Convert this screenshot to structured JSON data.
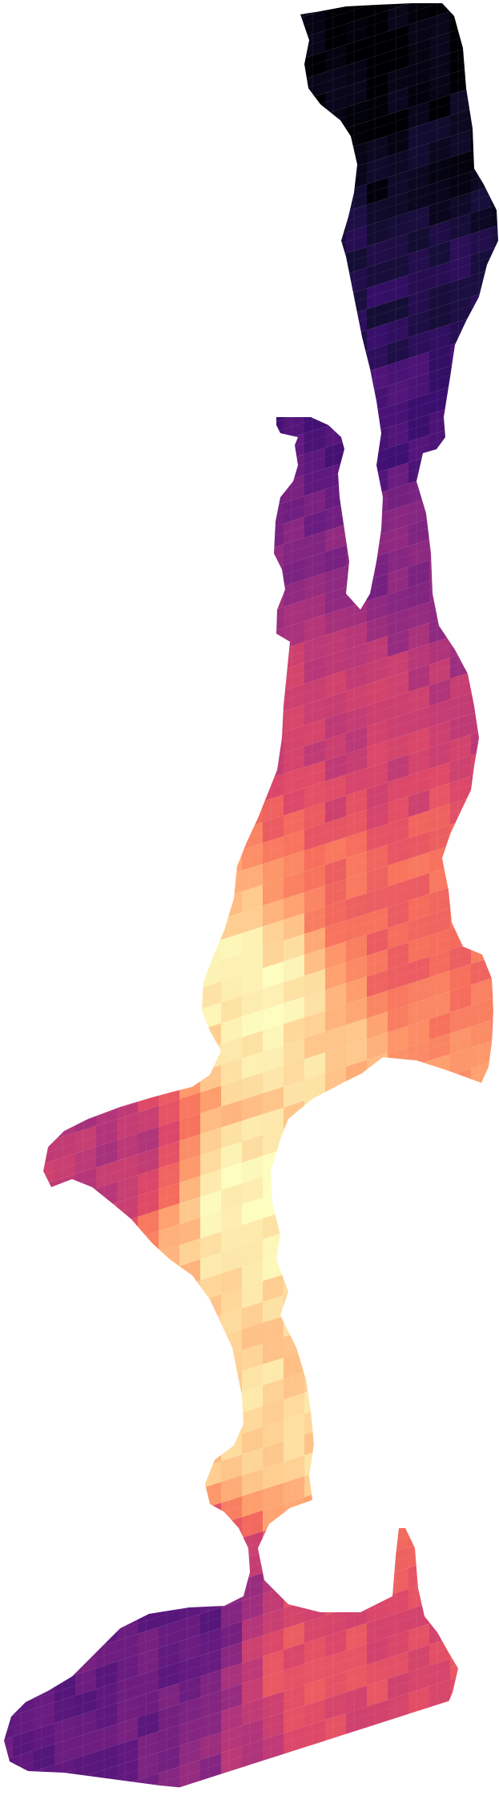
{
  "map": {
    "type": "raster-heatmap",
    "colormap": "magma",
    "colors": {
      "background": "#ffffff",
      "ramp": [
        "#000004",
        "#140e36",
        "#3b0f70",
        "#641a80",
        "#8c2981",
        "#b73779",
        "#de4968",
        "#f7705c",
        "#fe9f6d",
        "#fecf92",
        "#fcfdbf"
      ]
    },
    "region_values": [
      {
        "name": "north-tip",
        "value": 0.0
      },
      {
        "name": "north-upper",
        "value": 0.05
      },
      {
        "name": "north-mid",
        "value": 0.14
      },
      {
        "name": "neck-upper",
        "value": 0.24
      },
      {
        "name": "neck-lower",
        "value": 0.38
      },
      {
        "name": "upper-body",
        "value": 0.55
      },
      {
        "name": "middle-body",
        "value": 0.68
      },
      {
        "name": "central-channel",
        "value": 0.97
      },
      {
        "name": "west-lobe",
        "value": 0.5
      },
      {
        "name": "south-neck",
        "value": 0.92
      },
      {
        "name": "south-lobe",
        "value": 0.62
      },
      {
        "name": "southwest-edge",
        "value": 0.3
      }
    ]
  }
}
